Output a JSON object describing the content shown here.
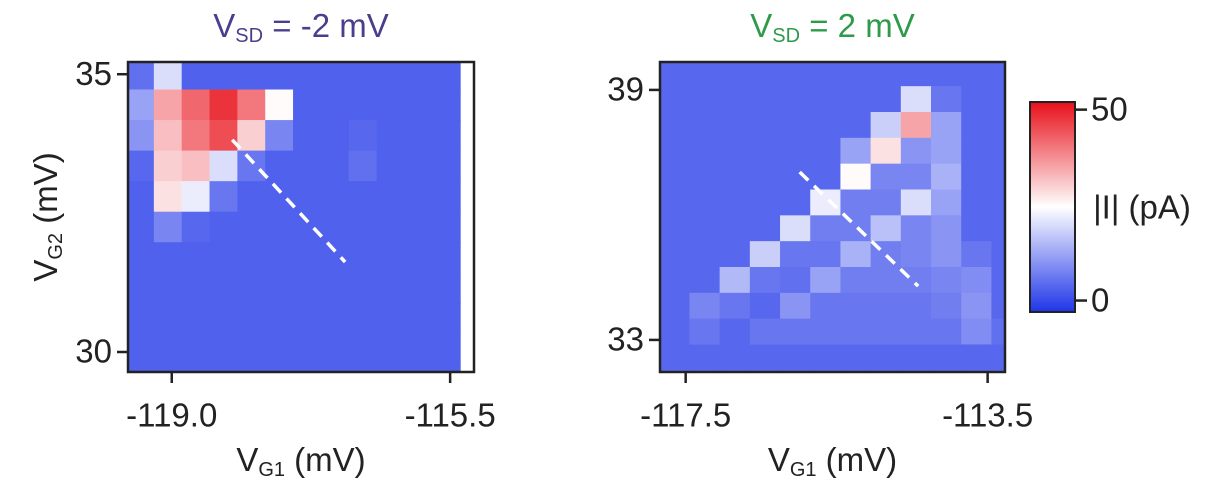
{
  "chart_data": [
    {
      "type": "heatmap",
      "title": [
        "V",
        "SD",
        " = -2 mV"
      ],
      "title_color": "#4a3f8c",
      "xlabel": [
        "V",
        "G1",
        " (mV)"
      ],
      "ylabel": [
        "V",
        "G2",
        " (mV)"
      ],
      "xlim": [
        -119.55,
        -115.2
      ],
      "ylim": [
        29.64,
        35.22
      ],
      "xticks": [
        {
          "value": -119,
          "label": "-119.0"
        },
        -115.5
      ],
      "yticks": [
        30,
        35
      ],
      "clim": [
        -3,
        52
      ],
      "colormap": [
        "#1f35e8",
        "#ffffff",
        "#e8101a"
      ],
      "x": [
        -119.4,
        -119.05,
        -118.7,
        -118.35,
        -118.0,
        -117.65,
        -117.3,
        -116.95,
        -116.6,
        -116.25,
        -115.9,
        -115.55
      ],
      "y": [
        35.0,
        34.45,
        33.9,
        33.35,
        32.8,
        32.25,
        31.7,
        31.15,
        30.6,
        30.05,
        29.5
      ],
      "z": [
        [
          5,
          20,
          3,
          3,
          3,
          3,
          3,
          3,
          3,
          3,
          3,
          3
        ],
        [
          12,
          35,
          42,
          48,
          40,
          25,
          3,
          3,
          3,
          3,
          3,
          3
        ],
        [
          10,
          32,
          40,
          45,
          30,
          8,
          3,
          3,
          4,
          3,
          3,
          3
        ],
        [
          4,
          30,
          32,
          20,
          6,
          3,
          3,
          3,
          5,
          3,
          3,
          3
        ],
        [
          3,
          28,
          22,
          6,
          3,
          3,
          3,
          3,
          3,
          3,
          3,
          3
        ],
        [
          3,
          8,
          4,
          3,
          3,
          3,
          3,
          3,
          3,
          3,
          3,
          3
        ],
        [
          3,
          3,
          3,
          3,
          3,
          3,
          3,
          3,
          3,
          3,
          3,
          3
        ],
        [
          3,
          3,
          3,
          3,
          3,
          3,
          3,
          3,
          3,
          3,
          3,
          3
        ],
        [
          3,
          3,
          3,
          3,
          3,
          3,
          3,
          3,
          3,
          3,
          3,
          3
        ],
        [
          3,
          3,
          3,
          3,
          3,
          3,
          3,
          3,
          3,
          3,
          3,
          3
        ],
        [
          3,
          3,
          3,
          3,
          3,
          3,
          3,
          3,
          3,
          3,
          3,
          3
        ]
      ],
      "dashed_line": {
        "x": [
          -118.24,
          -116.82
        ],
        "y": [
          33.82,
          31.62
        ]
      }
    },
    {
      "type": "heatmap",
      "title": [
        "V",
        "SD",
        " = 2 mV"
      ],
      "title_color": "#2e9a4b",
      "xlabel": [
        "V",
        "G1",
        " (mV)"
      ],
      "xlim": [
        -117.84,
        -113.27
      ],
      "ylim": [
        32.23,
        39.67
      ],
      "xticks": [
        -117.5,
        -113.5
      ],
      "yticks": [
        33,
        39
      ],
      "clim": [
        -3,
        52
      ],
      "colormap": [
        "#1f35e8",
        "#ffffff",
        "#e8101a"
      ],
      "x": [
        -117.65,
        -117.25,
        -116.85,
        -116.45,
        -116.05,
        -115.65,
        -115.25,
        -114.85,
        -114.45,
        -114.05,
        -113.65,
        -113.25
      ],
      "y": [
        39.4,
        38.78,
        38.16,
        37.54,
        36.92,
        36.3,
        35.68,
        35.06,
        34.44,
        33.82,
        33.2,
        32.58
      ],
      "z": [
        [
          4,
          4,
          4,
          4,
          4,
          4,
          4,
          4,
          4,
          4,
          4,
          4
        ],
        [
          4,
          4,
          4,
          4,
          4,
          4,
          4,
          4,
          20,
          6,
          4,
          4
        ],
        [
          4,
          4,
          4,
          4,
          4,
          4,
          4,
          18,
          35,
          12,
          4,
          4
        ],
        [
          4,
          4,
          4,
          4,
          4,
          4,
          12,
          28,
          10,
          12,
          4,
          4
        ],
        [
          4,
          4,
          4,
          4,
          4,
          4,
          25,
          8,
          8,
          14,
          4,
          4
        ],
        [
          4,
          4,
          4,
          4,
          4,
          22,
          7,
          7,
          20,
          12,
          4,
          4
        ],
        [
          4,
          4,
          4,
          4,
          20,
          7,
          7,
          16,
          8,
          10,
          4,
          4
        ],
        [
          4,
          4,
          4,
          18,
          6,
          6,
          14,
          7,
          8,
          10,
          6,
          4
        ],
        [
          4,
          4,
          15,
          6,
          5,
          12,
          7,
          7,
          7,
          8,
          9,
          4
        ],
        [
          4,
          8,
          6,
          4,
          10,
          6,
          6,
          6,
          6,
          7,
          10,
          4
        ],
        [
          4,
          6,
          4,
          6,
          6,
          6,
          6,
          6,
          6,
          6,
          9,
          5
        ],
        [
          4,
          4,
          4,
          4,
          4,
          4,
          4,
          4,
          4,
          4,
          4,
          4
        ]
      ],
      "dashed_line": {
        "x": [
          -115.99,
          -114.42
        ],
        "y": [
          37.03,
          34.29
        ]
      },
      "colorbar": {
        "label": "|I| (pA)",
        "ticks": [
          0,
          50
        ]
      }
    }
  ]
}
